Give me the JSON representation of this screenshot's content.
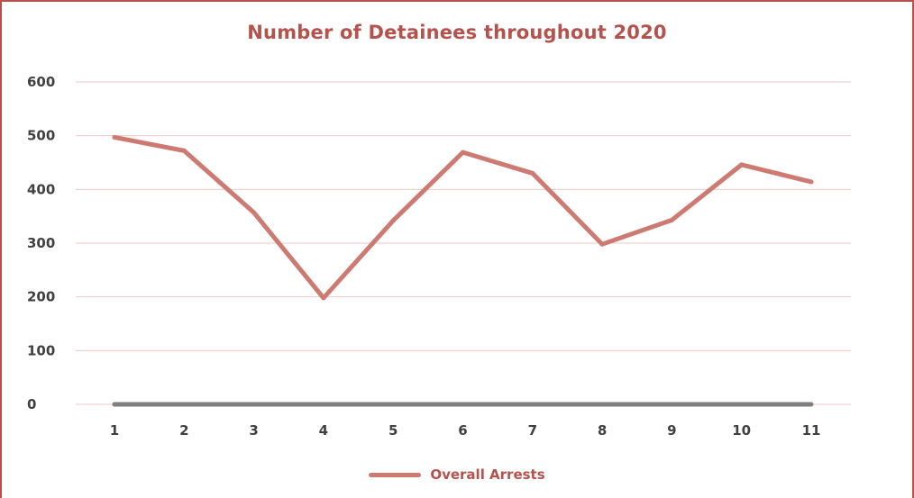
{
  "colors": {
    "accent": "#b5524c",
    "series": "#cd7a73",
    "zero_line": "#7f7f7f",
    "grid": "#efc9c4",
    "tick_text": "#404040"
  },
  "chart_data": {
    "type": "line",
    "title": "Number of Detainees throughout 2020",
    "xlabel": "",
    "ylabel": "",
    "categories": [
      "1",
      "2",
      "3",
      "4",
      "5",
      "6",
      "7",
      "8",
      "9",
      "10",
      "11"
    ],
    "ylim": [
      0,
      600
    ],
    "yticks": [
      "0",
      "100",
      "200",
      "300",
      "400",
      "500",
      "600"
    ],
    "grid": true,
    "legend_position": "bottom",
    "series": [
      {
        "name": "Overall Arrests",
        "values": [
          497,
          472,
          357,
          198,
          342,
          469,
          430,
          298,
          343,
          446,
          414
        ]
      },
      {
        "values": [
          0,
          0,
          0,
          0,
          0,
          0,
          0,
          0,
          0,
          0,
          0
        ]
      }
    ]
  }
}
